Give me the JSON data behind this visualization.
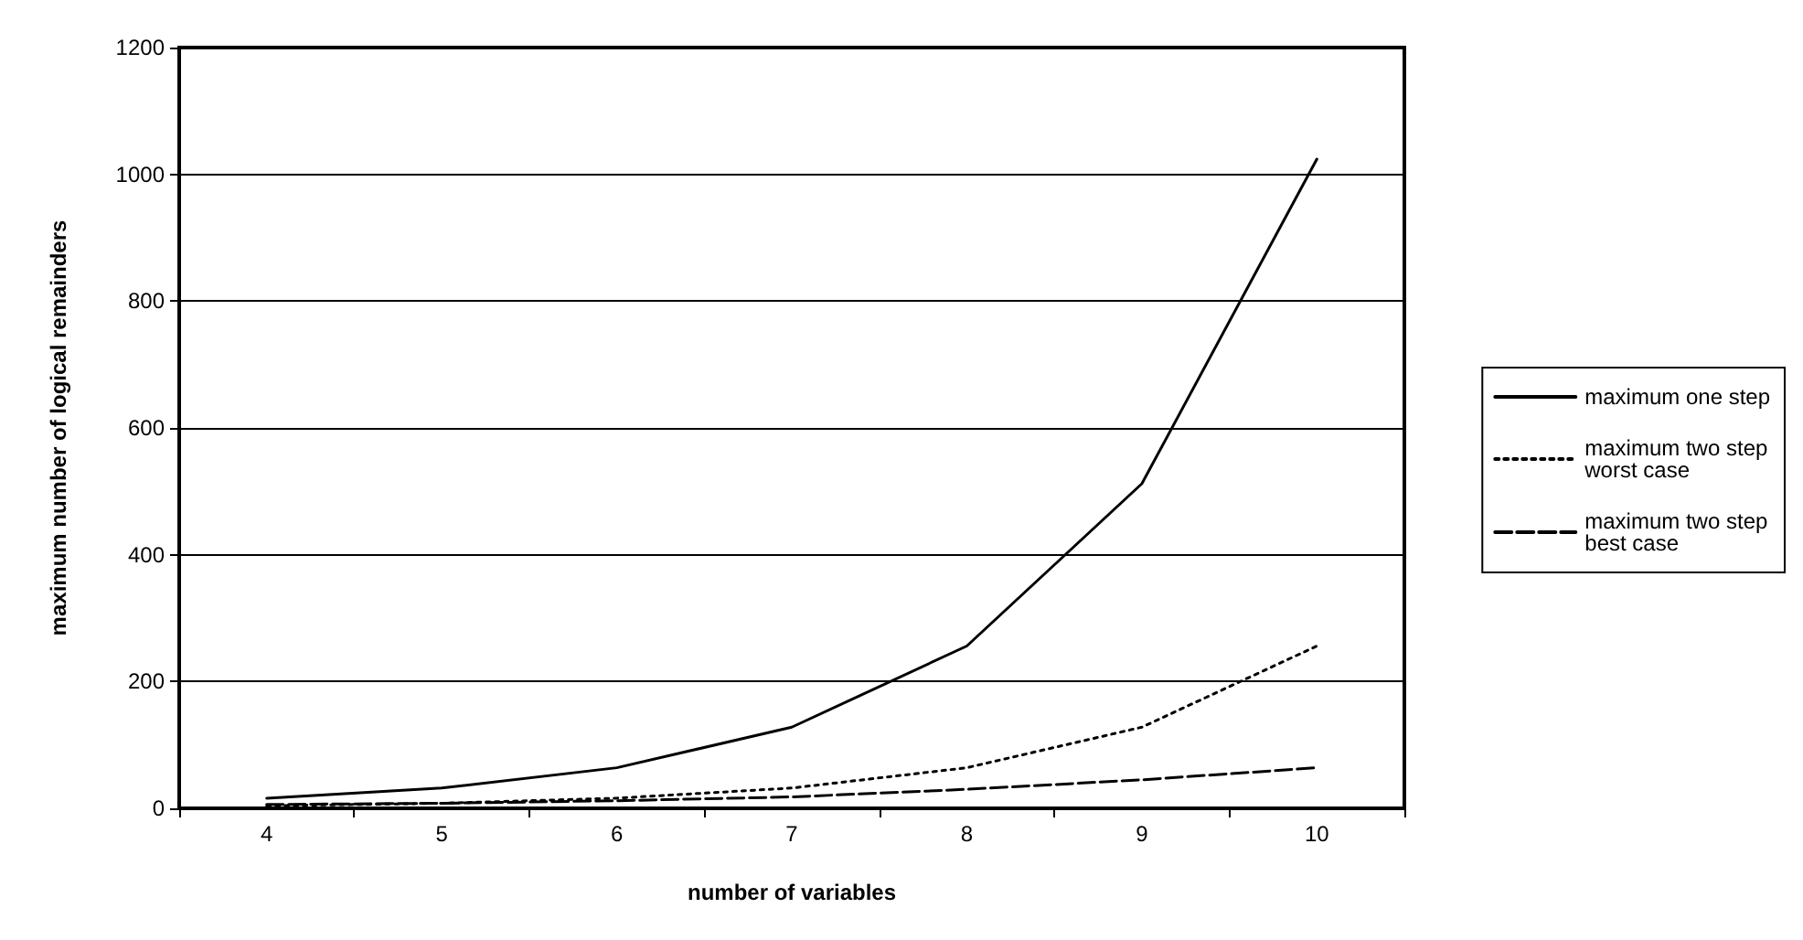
{
  "chart_data": {
    "type": "line",
    "xlabel": "number of variables",
    "ylabel": "maximum number of logical remainders",
    "categories": [
      "4",
      "5",
      "6",
      "7",
      "8",
      "9",
      "10"
    ],
    "series": [
      {
        "name": "maximum one step",
        "color": "#000000",
        "line_style": "solid",
        "values": [
          16,
          32,
          64,
          128,
          256,
          512,
          1024
        ]
      },
      {
        "name": "maximum two step worst case",
        "color": "#000000",
        "line_style": "dotted",
        "values": [
          4,
          8,
          16,
          32,
          64,
          128,
          256
        ]
      },
      {
        "name": "maximum two step best case",
        "color": "#000000",
        "line_style": "dashed",
        "values": [
          6,
          8,
          12,
          18,
          30,
          45,
          64
        ]
      }
    ],
    "ylim": [
      0,
      1200
    ],
    "yticks": [
      0,
      200,
      400,
      600,
      800,
      1000,
      1200
    ],
    "grid": "y",
    "legend": "right",
    "marker": "none"
  }
}
